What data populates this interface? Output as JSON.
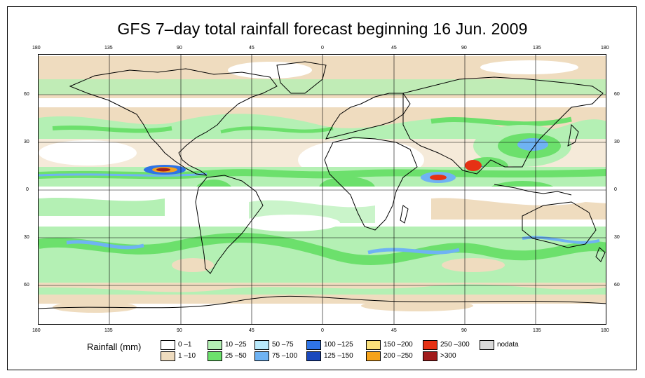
{
  "title": "GFS 7–day total rainfall forecast beginning 16 Jun. 2009",
  "map": {
    "projection": "cylindrical equidistant",
    "longitude_ticks": [
      "180",
      "135",
      "90",
      "45",
      "0",
      "45",
      "90",
      "135",
      "180"
    ],
    "latitude_ticks": [
      "60",
      "30",
      "0",
      "30",
      "60"
    ]
  },
  "legend": {
    "title": "Rainfall (mm)",
    "items": [
      {
        "label": "0 –1",
        "color": "#ffffff"
      },
      {
        "label": "1 –10",
        "color": "#efdcbf"
      },
      {
        "label": "10 –25",
        "color": "#b4f0b4"
      },
      {
        "label": "25 –50",
        "color": "#6ce06c"
      },
      {
        "label": "50 –75",
        "color": "#b9e9fb"
      },
      {
        "label": "75 –100",
        "color": "#6fb3f3"
      },
      {
        "label": "100 –125",
        "color": "#2f74e6"
      },
      {
        "label": "125 –150",
        "color": "#1a48bc"
      },
      {
        "label": "150 –200",
        "color": "#fbe07a"
      },
      {
        "label": "200 –250",
        "color": "#f6a31b"
      },
      {
        "label": "250 –300",
        "color": "#e63114"
      },
      {
        "label": ">300",
        "color": "#a11c1c"
      },
      {
        "label": "nodata",
        "color": "#d8d8d8"
      }
    ]
  }
}
